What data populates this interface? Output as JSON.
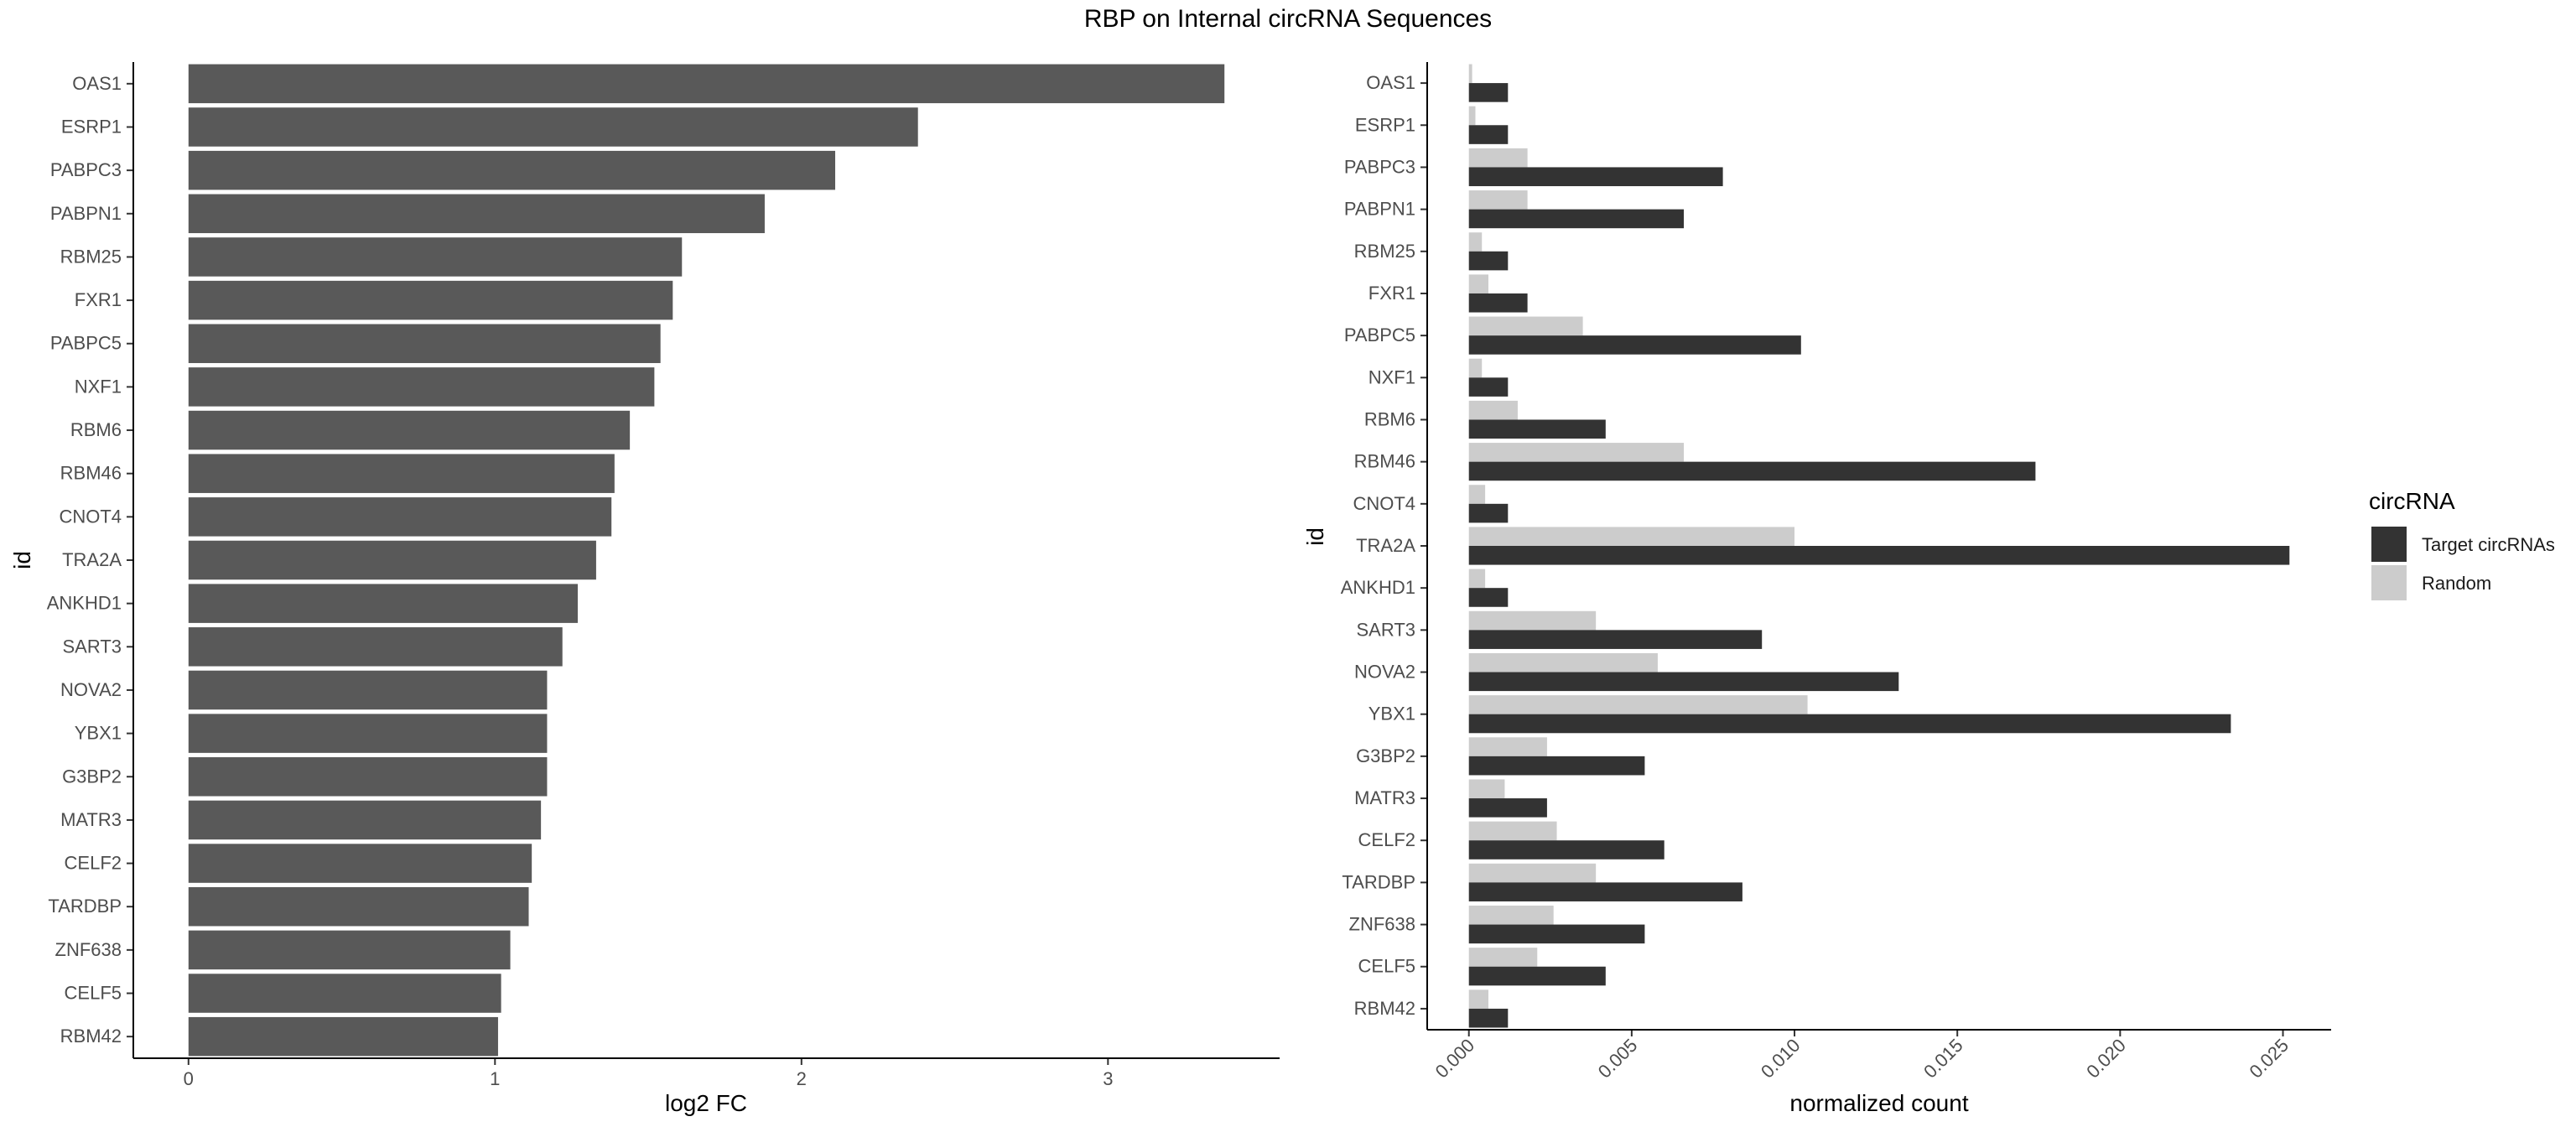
{
  "title": "RBP on Internal circRNA Sequences",
  "chart_data": [
    {
      "type": "bar",
      "orientation": "horizontal",
      "categories": [
        "OAS1",
        "ESRP1",
        "PABPC3",
        "PABPN1",
        "RBM25",
        "FXR1",
        "PABPC5",
        "NXF1",
        "RBM6",
        "RBM46",
        "CNOT4",
        "TRA2A",
        "ANKHD1",
        "SART3",
        "NOVA2",
        "YBX1",
        "G3BP2",
        "MATR3",
        "CELF2",
        "TARDBP",
        "ZNF638",
        "CELF5",
        "RBM42"
      ],
      "values": [
        3.38,
        2.38,
        2.11,
        1.88,
        1.61,
        1.58,
        1.54,
        1.52,
        1.44,
        1.39,
        1.38,
        1.33,
        1.27,
        1.22,
        1.17,
        1.17,
        1.17,
        1.15,
        1.12,
        1.11,
        1.05,
        1.02,
        1.01
      ],
      "xlabel": "log2 FC",
      "ylabel": "id",
      "xticks": [
        0,
        1,
        2,
        3
      ],
      "xlim": [
        -0.18,
        3.56
      ],
      "bar_color": "#595959",
      "grid": false
    },
    {
      "type": "bar",
      "orientation": "horizontal",
      "categories": [
        "OAS1",
        "ESRP1",
        "PABPC3",
        "PABPN1",
        "RBM25",
        "FXR1",
        "PABPC5",
        "NXF1",
        "RBM6",
        "RBM46",
        "CNOT4",
        "TRA2A",
        "ANKHD1",
        "SART3",
        "NOVA2",
        "YBX1",
        "G3BP2",
        "MATR3",
        "CELF2",
        "TARDBP",
        "ZNF638",
        "CELF5",
        "RBM42"
      ],
      "series": [
        {
          "name": "Target circRNAs",
          "color": "#333333",
          "values": [
            0.0012,
            0.0012,
            0.0078,
            0.0066,
            0.0012,
            0.0018,
            0.0102,
            0.0012,
            0.0042,
            0.0174,
            0.0012,
            0.0252,
            0.0012,
            0.009,
            0.0132,
            0.0234,
            0.0054,
            0.0024,
            0.006,
            0.0084,
            0.0054,
            0.0042,
            0.0012
          ]
        },
        {
          "name": "Random",
          "color": "#cccccc",
          "values": [
            0.0001,
            0.0002,
            0.0018,
            0.0018,
            0.0004,
            0.0006,
            0.0035,
            0.0004,
            0.0015,
            0.0066,
            0.0005,
            0.01,
            0.0005,
            0.0039,
            0.0058,
            0.0104,
            0.0024,
            0.0011,
            0.0027,
            0.0039,
            0.0026,
            0.0021,
            0.0006
          ]
        }
      ],
      "xlabel": "normalized count",
      "ylabel": "id",
      "xticks": [
        "0.000",
        "0.005",
        "0.010",
        "0.015",
        "0.020",
        "0.025"
      ],
      "xlim": [
        -0.00128,
        0.02648
      ],
      "legend_title": "circRNA",
      "legend_position": "right",
      "grid": false
    }
  ]
}
